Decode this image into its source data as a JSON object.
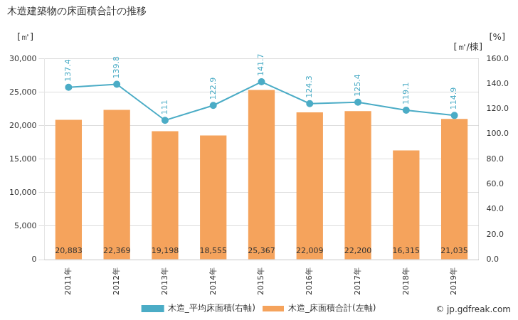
{
  "chart_data": {
    "type": "bar",
    "title": "木造建築物の床面積合計の推移",
    "categories": [
      "2011年",
      "2012年",
      "2013年",
      "2014年",
      "2015年",
      "2016年",
      "2017年",
      "2018年",
      "2019年"
    ],
    "series": [
      {
        "name": "木造_床面積合計(左軸)",
        "type": "bar",
        "color": "#f5a35c",
        "values": [
          20883,
          22369,
          19198,
          18555,
          25367,
          22009,
          22200,
          16315,
          21035
        ],
        "value_labels": [
          "20,883",
          "22,369",
          "19,198",
          "18,555",
          "25,367",
          "22,009",
          "22,200",
          "16,315",
          "21,035"
        ]
      },
      {
        "name": "木造_平均床面積(右軸)",
        "type": "line",
        "color": "#4bacc6",
        "marker": "circle",
        "axis": "y2",
        "values": [
          137.4,
          139.8,
          111,
          122.9,
          141.7,
          124.3,
          125.4,
          119.1,
          114.9
        ]
      }
    ],
    "y_label": "[㎡]",
    "y2_label": "[㎡/棟]",
    "annotations": [
      "[%]",
      "© jp.gdfreak.com"
    ],
    "ylim": [
      0,
      30000
    ],
    "yticks": [
      0,
      {
        "value": 5000,
        "label": "5,000"
      },
      {
        "value": 10000,
        "label": "10,000"
      },
      {
        "value": 15000,
        "label": "15,000"
      },
      {
        "value": 20000,
        "label": "20,000"
      },
      {
        "value": 25000,
        "label": "25,000"
      },
      {
        "value": 30000,
        "label": "30,000"
      }
    ],
    "y2lim": [
      0,
      160
    ],
    "y2ticks": [
      {
        "value": 0,
        "label": "0.0"
      },
      {
        "value": 20,
        "label": "20.0"
      },
      {
        "value": 40,
        "label": "40.0"
      },
      {
        "value": 60,
        "label": "60.0"
      },
      {
        "value": 80,
        "label": "80.0"
      },
      {
        "value": 100,
        "label": "100.0"
      },
      {
        "value": 120,
        "label": "120.0"
      },
      {
        "value": 140,
        "label": "140.0"
      },
      {
        "value": 160,
        "label": "160.0"
      }
    ],
    "grid": true,
    "legend": "bottom",
    "data_labels": true
  }
}
